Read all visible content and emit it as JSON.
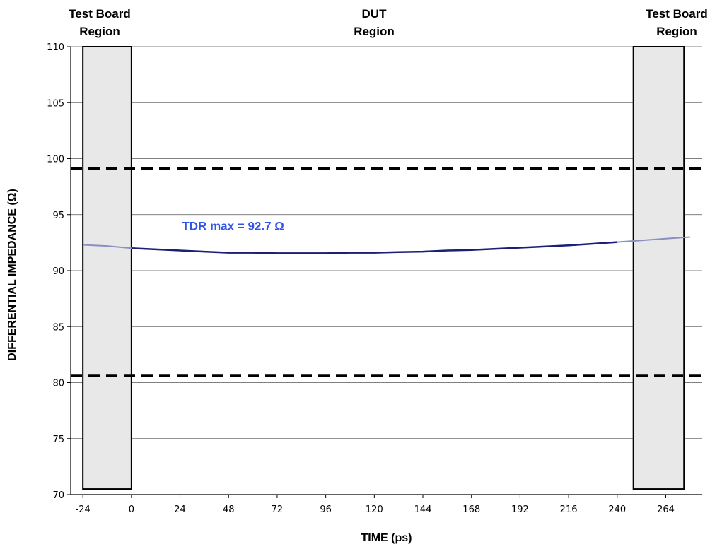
{
  "chart_data": {
    "type": "line",
    "title": "",
    "xlabel": "TIME (ps)",
    "ylabel": "DIFFERENTIAL IMPEDANCE (Ω)",
    "xlim": [
      -30,
      282
    ],
    "ylim": [
      70,
      110
    ],
    "x_ticks": [
      -24,
      0,
      24,
      48,
      72,
      96,
      120,
      144,
      168,
      192,
      216,
      240,
      264
    ],
    "y_ticks": [
      70,
      75,
      80,
      85,
      90,
      95,
      100,
      105,
      110
    ],
    "grid": "horizontal",
    "regions": [
      {
        "label_line1": "Test Board",
        "label_line2": "Region",
        "x_start": -24,
        "x_end": 0,
        "y_bottom": 70.5,
        "y_top": 110,
        "shaded": true
      },
      {
        "label_line1": "DUT",
        "label_line2": "Region",
        "x_start": 0,
        "x_end": 248,
        "shaded": false
      },
      {
        "label_line1": "Test Board",
        "label_line2": "Region",
        "x_start": 248,
        "x_end": 273,
        "y_bottom": 70.5,
        "y_top": 110,
        "shaded": true
      }
    ],
    "limit_lines": [
      {
        "y": 99.1,
        "style": "dashed"
      },
      {
        "y": 80.6,
        "style": "dashed"
      }
    ],
    "series": [
      {
        "color": "#1a1f78",
        "x": [
          -24,
          -12,
          0,
          12,
          24,
          36,
          48,
          60,
          72,
          84,
          96,
          108,
          120,
          132,
          144,
          156,
          168,
          180,
          192,
          204,
          216,
          228,
          240,
          252,
          264,
          276
        ],
        "values": [
          92.3,
          92.2,
          92.0,
          91.9,
          91.8,
          91.7,
          91.6,
          91.6,
          91.55,
          91.55,
          91.55,
          91.6,
          91.6,
          91.65,
          91.7,
          91.8,
          91.85,
          91.95,
          92.05,
          92.15,
          92.25,
          92.4,
          92.55,
          92.7,
          92.85,
          93.0
        ]
      }
    ],
    "annotations": [
      {
        "text": "TDR max = 92.7 Ω",
        "x": 25,
        "y": 94.0,
        "color": "#3355e6"
      }
    ]
  }
}
